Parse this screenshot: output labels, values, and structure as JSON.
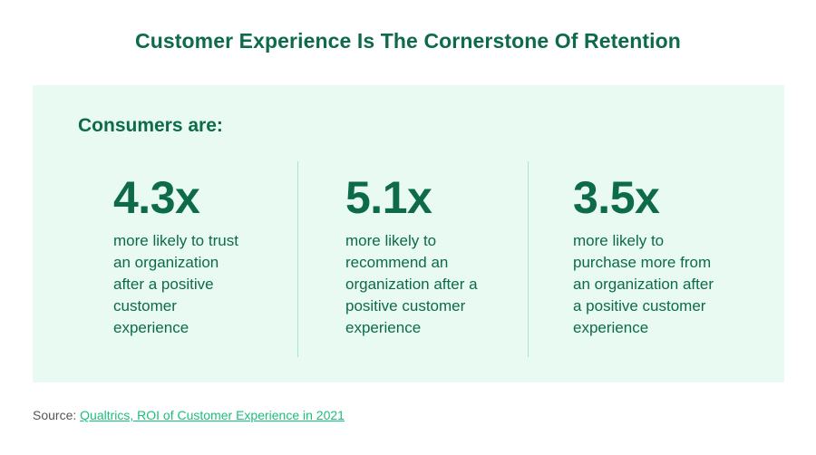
{
  "title": "Customer Experience Is The Cornerstone Of Retention",
  "panel": {
    "subhead": "Consumers are:",
    "stats": [
      {
        "value": "4.3x",
        "lines": [
          "more likely to trust",
          "an organization",
          "after a positive",
          "customer",
          "experience"
        ]
      },
      {
        "value": "5.1x",
        "lines": [
          "more likely to",
          "recommend an",
          "organization after a",
          "positive customer",
          "experience"
        ]
      },
      {
        "value": "3.5x",
        "lines": [
          "more likely to",
          "purchase more from",
          "an organization after",
          "a positive customer",
          "experience"
        ]
      }
    ]
  },
  "source": {
    "prefix": "Source: ",
    "link_text": "Qualtrics, ROI of Customer Experience in 2021"
  },
  "colors": {
    "primary_green": "#0d6b4a",
    "panel_bg": "#e8faf2",
    "link_green": "#1bbf7a"
  }
}
